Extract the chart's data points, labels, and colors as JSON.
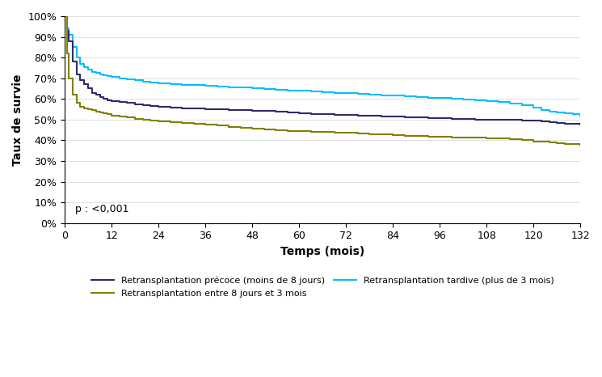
{
  "title": "",
  "xlabel": "Temps (mois)",
  "ylabel": "Taux de survie",
  "xlim": [
    0,
    132
  ],
  "ylim": [
    0,
    1.0
  ],
  "xticks": [
    0,
    12,
    24,
    36,
    48,
    60,
    72,
    84,
    96,
    108,
    120,
    132
  ],
  "yticks": [
    0.0,
    0.1,
    0.2,
    0.3,
    0.4,
    0.5,
    0.6,
    0.7,
    0.8,
    0.9,
    1.0
  ],
  "p_text": "p : <0,001",
  "legend": [
    {
      "label": "Retransplantation précoce (moins de 8 jours)",
      "color": "#2E2A6E",
      "lw": 1.5
    },
    {
      "label": "Retransplantation entre 8 jours et 3 mois",
      "color": "#808000",
      "lw": 1.5
    },
    {
      "label": "Retransplantation tardive (plus de 3 mois)",
      "color": "#00BFFF",
      "lw": 1.5
    }
  ],
  "curves": {
    "precoce": {
      "color": "#2E2A6E",
      "x": [
        0,
        0.5,
        1,
        2,
        3,
        4,
        5,
        6,
        7,
        8,
        9,
        10,
        11,
        12,
        14,
        16,
        18,
        20,
        22,
        24,
        27,
        30,
        33,
        36,
        39,
        42,
        45,
        48,
        51,
        54,
        57,
        60,
        63,
        66,
        69,
        72,
        75,
        78,
        81,
        84,
        87,
        90,
        93,
        96,
        99,
        102,
        105,
        108,
        111,
        114,
        117,
        120,
        122,
        124,
        126,
        128,
        130,
        132
      ],
      "y": [
        1.0,
        0.93,
        0.88,
        0.78,
        0.72,
        0.69,
        0.67,
        0.65,
        0.63,
        0.62,
        0.61,
        0.6,
        0.595,
        0.59,
        0.585,
        0.58,
        0.575,
        0.57,
        0.565,
        0.56,
        0.558,
        0.556,
        0.554,
        0.552,
        0.55,
        0.548,
        0.546,
        0.544,
        0.542,
        0.54,
        0.535,
        0.53,
        0.528,
        0.526,
        0.524,
        0.522,
        0.52,
        0.518,
        0.516,
        0.514,
        0.512,
        0.51,
        0.508,
        0.506,
        0.504,
        0.502,
        0.501,
        0.5,
        0.499,
        0.498,
        0.497,
        0.496,
        0.492,
        0.488,
        0.484,
        0.48,
        0.478,
        0.476
      ]
    },
    "intermediaire": {
      "color": "#808000",
      "x": [
        0,
        0.5,
        1,
        2,
        3,
        4,
        5,
        6,
        7,
        8,
        9,
        10,
        11,
        12,
        14,
        16,
        18,
        20,
        22,
        24,
        27,
        30,
        33,
        36,
        39,
        42,
        45,
        48,
        51,
        54,
        57,
        60,
        63,
        66,
        69,
        72,
        75,
        78,
        81,
        84,
        87,
        90,
        93,
        96,
        99,
        102,
        105,
        108,
        111,
        114,
        117,
        120,
        122,
        124,
        126,
        128,
        130,
        132
      ],
      "y": [
        1.0,
        0.82,
        0.7,
        0.62,
        0.58,
        0.56,
        0.555,
        0.55,
        0.545,
        0.54,
        0.535,
        0.53,
        0.525,
        0.52,
        0.515,
        0.51,
        0.505,
        0.5,
        0.495,
        0.49,
        0.487,
        0.484,
        0.48,
        0.475,
        0.47,
        0.465,
        0.46,
        0.455,
        0.452,
        0.449,
        0.446,
        0.443,
        0.442,
        0.44,
        0.438,
        0.435,
        0.432,
        0.43,
        0.428,
        0.425,
        0.423,
        0.421,
        0.419,
        0.417,
        0.415,
        0.413,
        0.412,
        0.41,
        0.408,
        0.405,
        0.4,
        0.395,
        0.392,
        0.389,
        0.386,
        0.383,
        0.38,
        0.377
      ]
    },
    "tardive": {
      "color": "#00BFFF",
      "x": [
        0,
        0.5,
        1,
        2,
        3,
        4,
        5,
        6,
        7,
        8,
        9,
        10,
        11,
        12,
        14,
        16,
        18,
        20,
        22,
        24,
        27,
        30,
        33,
        36,
        39,
        42,
        45,
        48,
        51,
        54,
        57,
        60,
        63,
        66,
        69,
        72,
        75,
        78,
        81,
        84,
        87,
        90,
        93,
        96,
        99,
        102,
        105,
        108,
        111,
        114,
        117,
        120,
        122,
        124,
        126,
        128,
        130,
        132
      ],
      "y": [
        1.0,
        0.94,
        0.91,
        0.85,
        0.8,
        0.77,
        0.755,
        0.74,
        0.73,
        0.725,
        0.72,
        0.715,
        0.71,
        0.705,
        0.7,
        0.695,
        0.69,
        0.685,
        0.68,
        0.675,
        0.672,
        0.669,
        0.666,
        0.663,
        0.66,
        0.657,
        0.654,
        0.651,
        0.648,
        0.645,
        0.642,
        0.639,
        0.636,
        0.633,
        0.63,
        0.627,
        0.624,
        0.621,
        0.618,
        0.615,
        0.612,
        0.609,
        0.606,
        0.603,
        0.6,
        0.597,
        0.594,
        0.59,
        0.585,
        0.578,
        0.568,
        0.558,
        0.548,
        0.54,
        0.535,
        0.53,
        0.525,
        0.52
      ]
    }
  }
}
